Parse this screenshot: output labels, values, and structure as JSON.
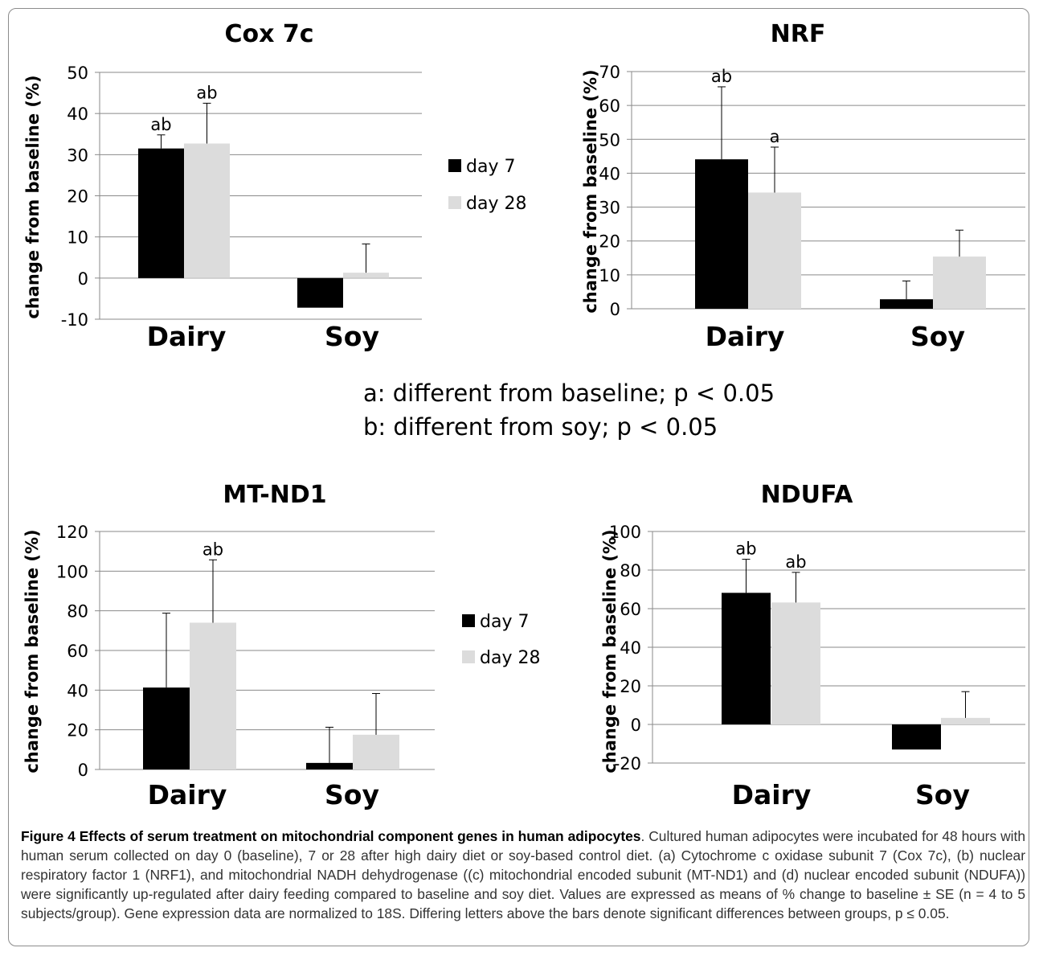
{
  "chart_data": [
    {
      "type": "bar",
      "title": "Cox 7c",
      "ylabel": "change from baseline (%)",
      "categories": [
        "Dairy",
        "Soy"
      ],
      "ylim": [
        -10,
        50
      ],
      "yticks": [
        -10,
        0,
        10,
        20,
        30,
        40,
        50
      ],
      "grid": true,
      "legend": "right",
      "series": [
        {
          "name": "day 7",
          "color": "#000000",
          "values": [
            31.5,
            -7.2
          ],
          "errors": [
            3.3,
            0
          ],
          "labels": [
            "ab",
            ""
          ]
        },
        {
          "name": "day 28",
          "color": "#dcdcdc",
          "values": [
            32.7,
            1.3
          ],
          "errors": [
            9.8,
            7.0
          ],
          "labels": [
            "ab",
            ""
          ]
        }
      ]
    },
    {
      "type": "bar",
      "title": "NRF",
      "ylabel": "change from baseline (%)",
      "categories": [
        "Dairy",
        "Soy"
      ],
      "ylim": [
        0,
        70
      ],
      "yticks": [
        0,
        10,
        20,
        30,
        40,
        50,
        60,
        70
      ],
      "grid": true,
      "legend": "none",
      "series": [
        {
          "name": "day 7",
          "color": "#000000",
          "values": [
            44.1,
            2.8
          ],
          "errors": [
            21.4,
            5.4
          ],
          "labels": [
            "ab",
            ""
          ]
        },
        {
          "name": "day 28",
          "color": "#dcdcdc",
          "values": [
            34.3,
            15.4
          ],
          "errors": [
            13.4,
            7.8
          ],
          "labels": [
            "a",
            ""
          ]
        }
      ]
    },
    {
      "type": "bar",
      "title": "MT-ND1",
      "ylabel": "change from baseline (%)",
      "categories": [
        "Dairy",
        "Soy"
      ],
      "ylim": [
        0,
        120
      ],
      "yticks": [
        0,
        20,
        40,
        60,
        80,
        100,
        120
      ],
      "grid": true,
      "legend": "right",
      "series": [
        {
          "name": "day 7",
          "color": "#000000",
          "values": [
            41.3,
            3.3
          ],
          "errors": [
            37.5,
            18.0
          ],
          "labels": [
            "",
            ""
          ]
        },
        {
          "name": "day 28",
          "color": "#dcdcdc",
          "values": [
            74.0,
            17.5
          ],
          "errors": [
            31.7,
            20.8
          ],
          "labels": [
            "ab",
            ""
          ]
        }
      ]
    },
    {
      "type": "bar",
      "title": "NDUFA",
      "ylabel": "change from baseline (%)",
      "categories": [
        "Dairy",
        "Soy"
      ],
      "ylim": [
        -20,
        100
      ],
      "yticks": [
        -20,
        0,
        20,
        40,
        60,
        80,
        100
      ],
      "grid": true,
      "legend": "none",
      "series": [
        {
          "name": "day 7",
          "color": "#000000",
          "values": [
            68.2,
            -13.0
          ],
          "errors": [
            17.4,
            0
          ],
          "labels": [
            "ab",
            ""
          ]
        },
        {
          "name": "day 28",
          "color": "#dcdcdc",
          "values": [
            63.2,
            3.4
          ],
          "errors": [
            15.6,
            13.6
          ],
          "labels": [
            "ab",
            ""
          ]
        }
      ]
    }
  ],
  "notes": {
    "a": "a: different from baseline; p < 0.05",
    "b": "b: different from soy; p < 0.05"
  },
  "caption": {
    "bold": "Figure 4 Effects of serum treatment on mitochondrial component genes in human adipocytes",
    "text": ". Cultured human adipocytes were incubated for 48 hours with human serum collected on day 0 (baseline), 7 or 28 after high dairy diet or soy-based control diet. (a) Cytochrome c oxidase subunit 7 (Cox 7c), (b) nuclear respiratory factor 1 (NRF1), and mitochondrial NADH dehydrogenase ((c) mitochondrial encoded subunit (MT-ND1) and (d) nuclear encoded subunit (NDUFA)) were significantly up-regulated after dairy feeding compared to baseline and soy diet. Values are expressed as means of % change to baseline ± SE (n = 4 to 5 subjects/group). Gene expression data are normalized to 18S. Differing letters above the bars denote significant differences between groups, p ≤ 0.05."
  }
}
